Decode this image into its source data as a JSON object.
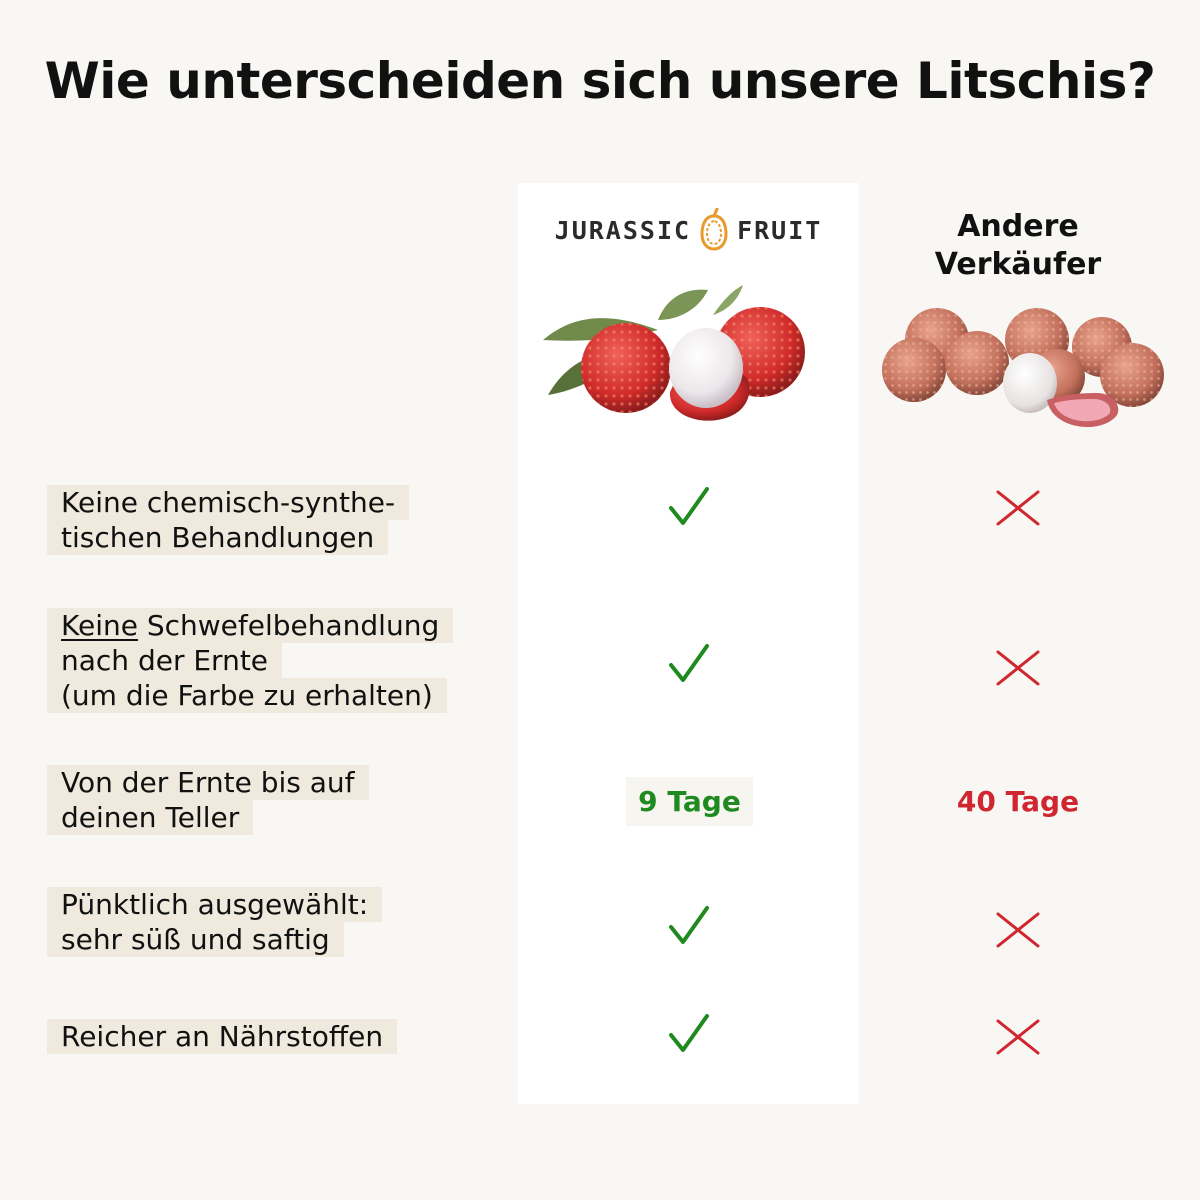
{
  "title": "Wie unterscheiden sich unsere Litschis?",
  "brand": {
    "left_word": "JURASSIC",
    "right_word": "FRUIT",
    "accent_color": "#e89a2c"
  },
  "other": {
    "line1": "Andere",
    "line2": "Verkäufer"
  },
  "rows": [
    {
      "lines": [
        "Keine chemisch-synthe-",
        "tischen Behandlungen"
      ],
      "ours": "check",
      "theirs": "cross"
    },
    {
      "underlined_word": "Keine",
      "lines": [
        " Schwefelbehandlung",
        "nach der Ernte",
        "(um die Farbe zu erhalten)"
      ],
      "ours": "check",
      "theirs": "cross"
    },
    {
      "lines": [
        "Von der Ernte bis auf",
        "deinen Teller"
      ],
      "ours": "9 Tage",
      "theirs": "40 Tage"
    },
    {
      "lines": [
        "Pünktlich ausgewählt:",
        "sehr süß und saftig"
      ],
      "ours": "check",
      "theirs": "cross"
    },
    {
      "lines": [
        "Reicher an Nährstoffen"
      ],
      "ours": "check",
      "theirs": "cross"
    }
  ],
  "colors": {
    "check": "#1f8a1f",
    "cross": "#d0262f",
    "label_bg": "#efeadd",
    "page_bg": "#f9f7f3"
  },
  "icons": [
    "lychee-logo-icon",
    "check-icon",
    "cross-icon"
  ]
}
